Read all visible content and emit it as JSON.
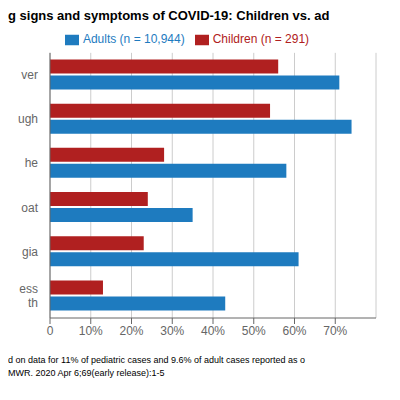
{
  "chart_data": {
    "type": "bar",
    "orientation": "horizontal",
    "title": "g signs and symptoms of COVID-19: Children vs. ad",
    "categories": [
      "ver",
      "ugh",
      "he",
      "oat",
      "gia",
      "ess\nth"
    ],
    "series": [
      {
        "name": "Children (n = 291)",
        "color": "#b02020",
        "values": [
          56,
          54,
          28,
          24,
          23,
          13
        ]
      },
      {
        "name": "Adults (n = 10,944)",
        "color": "#1e7bbf",
        "values": [
          71,
          74,
          58,
          35,
          61,
          43
        ]
      }
    ],
    "xlim": [
      0,
      80
    ],
    "xticks": [
      0,
      {
        "value": 10,
        "label": "10%"
      },
      {
        "value": 20,
        "label": "20%"
      },
      {
        "value": 30,
        "label": "30%"
      },
      {
        "value": 40,
        "label": "40%"
      },
      {
        "value": 50,
        "label": "50%"
      },
      {
        "value": 60,
        "label": "60%"
      },
      {
        "value": 70,
        "label": "70%"
      }
    ],
    "grid": true,
    "legend": "top",
    "annotations": [
      "d on data for 11% of pediatric cases and 9.6% of adult cases reported as o",
      "MWR. 2020 Apr 6;69(early release):1-5"
    ]
  }
}
